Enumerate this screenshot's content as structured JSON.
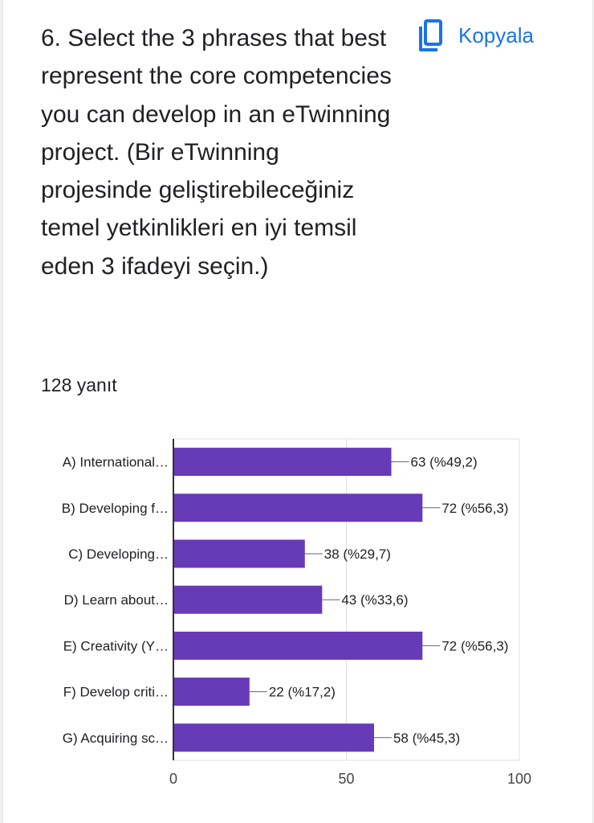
{
  "question": {
    "text": "6. Select the 3 phrases that best represent the core competencies you can develop in an eTwinning project. (Bir eTwinning projesinde geliştirebileceğiniz temel yetkinlikleri en iyi temsil eden 3 ifadeyi seçin.)"
  },
  "copy_button": {
    "label": "Kopyala",
    "icon": "copy-icon"
  },
  "response_count": "128 yanıt",
  "colors": {
    "bar": "#673ab7",
    "accent": "#1a73e8",
    "grid": "#e0e0e0",
    "text": "#202124"
  },
  "chart_data": {
    "type": "bar",
    "orientation": "horizontal",
    "categories": [
      "A) International…",
      "B) Developing f…",
      "C) Developing…",
      "D) Learn about…",
      "E) Creativity (Y…",
      "F) Develop criti…",
      "G) Acquiring sc…"
    ],
    "values": [
      63,
      72,
      38,
      43,
      72,
      22,
      58
    ],
    "value_labels": [
      "63 (%49,2)",
      "72 (%56,3)",
      "38 (%29,7)",
      "43 (%33,6)",
      "72 (%56,3)",
      "22 (%17,2)",
      "58 (%45,3)"
    ],
    "xlim": [
      0,
      100
    ],
    "xticks": [
      "0",
      "50",
      "100"
    ],
    "grid": true
  }
}
